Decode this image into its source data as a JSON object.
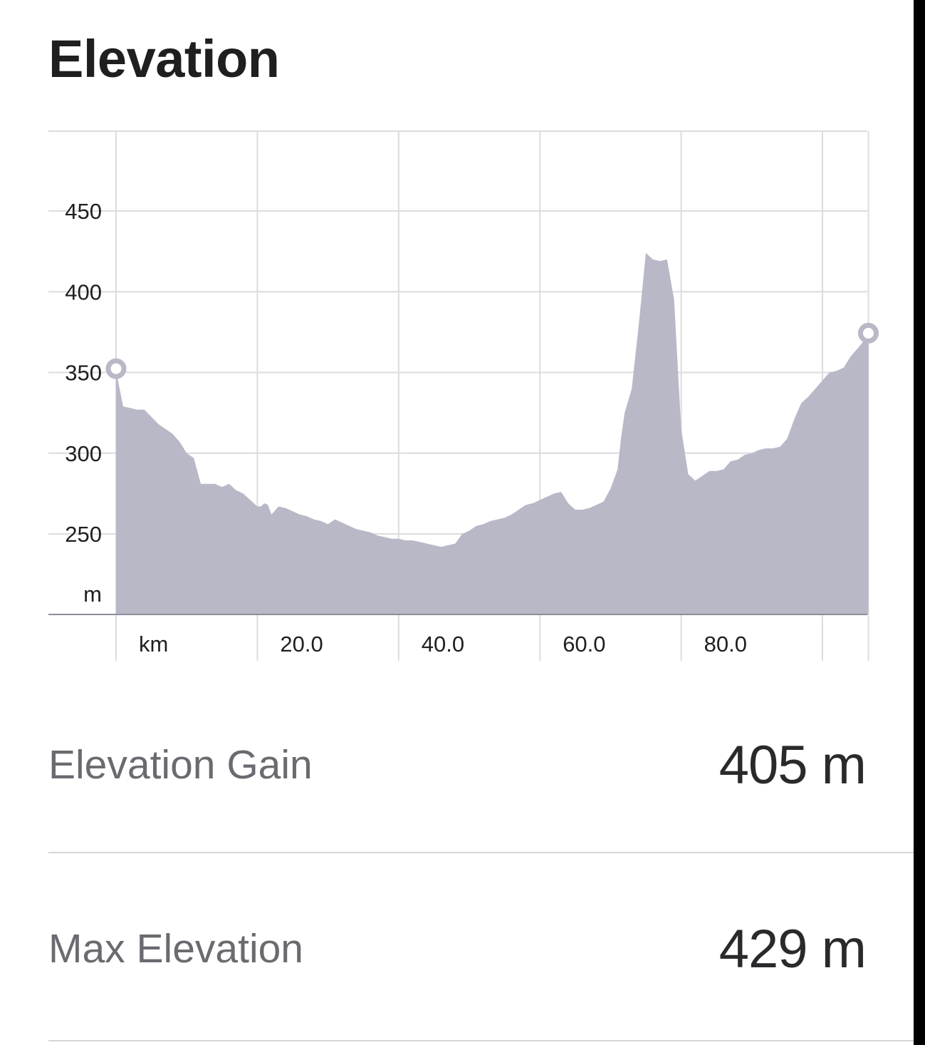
{
  "header": {
    "title": "Elevation"
  },
  "chart_data": {
    "type": "area",
    "title": "Elevation",
    "xlabel": "km",
    "ylabel": "m",
    "x_ticks": [
      {
        "value": 20,
        "label": "20.0"
      },
      {
        "value": 40,
        "label": "40.0"
      },
      {
        "value": 60,
        "label": "60.0"
      },
      {
        "value": 80,
        "label": "80.0"
      },
      {
        "value": 100,
        "label": ""
      }
    ],
    "y_ticks": [
      250,
      300,
      350,
      400,
      450
    ],
    "xlim": [
      0,
      106.5
    ],
    "ylim": [
      200,
      500
    ],
    "grid": true,
    "fill_color": "#b9b8c7",
    "marker_color": "#b9b8c7",
    "series": [
      {
        "x": [
          0,
          1,
          3,
          4,
          6,
          8,
          9,
          10,
          11,
          12,
          13,
          14,
          15,
          16,
          17,
          18,
          19,
          20,
          20.5,
          21,
          21.5,
          22,
          23,
          24,
          25,
          26,
          27,
          28,
          29,
          30,
          31,
          32,
          33,
          34,
          35,
          36,
          37,
          38,
          39,
          40,
          41,
          42,
          43,
          44,
          45,
          46,
          47,
          48,
          49,
          50,
          51,
          52,
          53,
          54,
          55,
          56,
          57,
          58,
          59,
          60,
          61,
          62,
          63,
          64,
          65,
          66,
          67,
          68,
          69,
          70,
          71,
          71.5,
          72,
          73,
          74,
          75,
          76,
          77,
          78,
          79,
          80,
          81,
          82,
          83,
          84,
          85,
          86,
          87,
          88,
          89,
          90,
          91,
          92,
          93,
          94,
          95,
          96,
          97,
          98,
          99,
          100,
          101,
          102,
          103,
          104,
          105,
          106.5
        ],
        "y": [
          351,
          329,
          327,
          327,
          318,
          312,
          307,
          300,
          297,
          281,
          281,
          281,
          279,
          281,
          277,
          275,
          271,
          267,
          267,
          269,
          268,
          262,
          267,
          266,
          264,
          262,
          261,
          259,
          258,
          256,
          259,
          257,
          255,
          253,
          252,
          251,
          249,
          248,
          247,
          247,
          246,
          246,
          245,
          244,
          243,
          242,
          243,
          244,
          250,
          252,
          255,
          256,
          258,
          259,
          260,
          262,
          265,
          268,
          269,
          271,
          273,
          275,
          276,
          269,
          265,
          265,
          266,
          268,
          270,
          278,
          290,
          310,
          325,
          340,
          380,
          424,
          420,
          419,
          420,
          395,
          315,
          287,
          283,
          286,
          289,
          289,
          290,
          295,
          296,
          299,
          300,
          302,
          303,
          303,
          304,
          309,
          321,
          331,
          335,
          340,
          345,
          350,
          351,
          353,
          360,
          365,
          373
        ]
      }
    ]
  },
  "stats": {
    "gain": {
      "label": "Elevation Gain",
      "value": "405 m"
    },
    "max": {
      "label": "Max Elevation",
      "value": "429 m"
    }
  }
}
